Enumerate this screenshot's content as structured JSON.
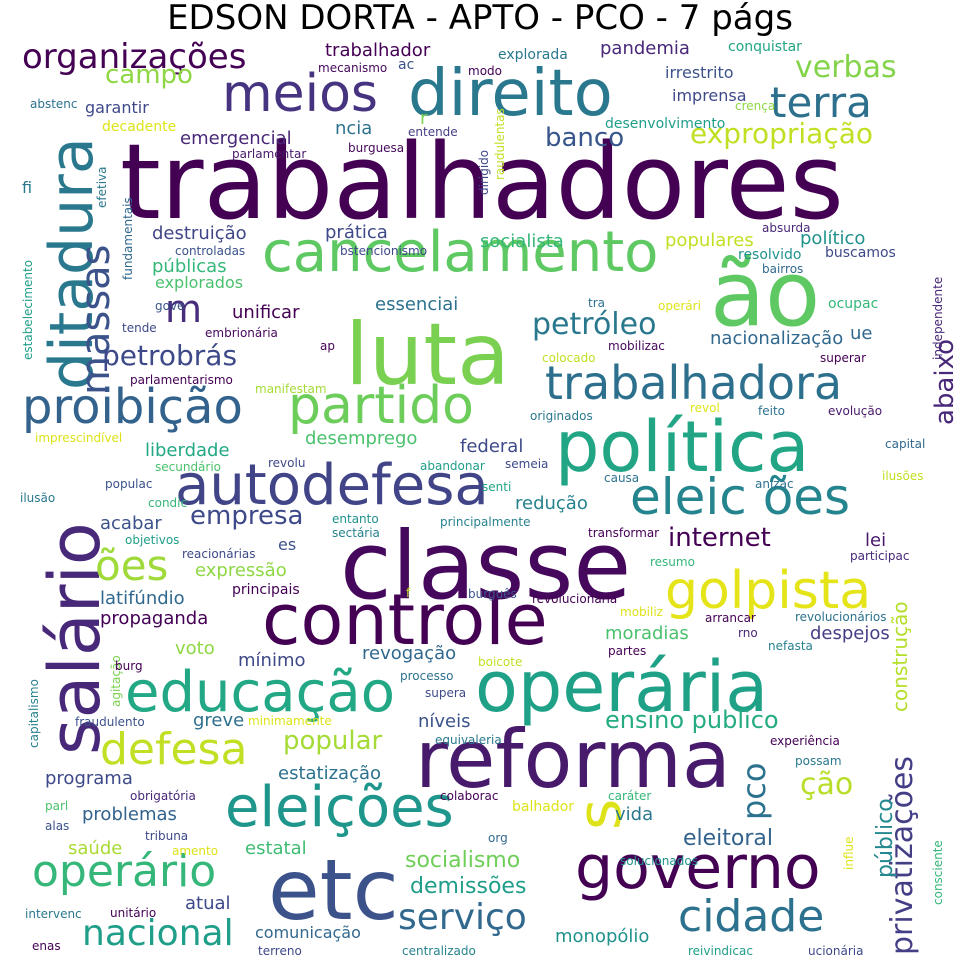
{
  "title": "EDSON DORTA - APTO - PCO - 7 págs",
  "palette": [
    "#440154",
    "#482878",
    "#3e4989",
    "#31688e",
    "#26828e",
    "#1f9e89",
    "#35b779",
    "#6ece58",
    "#b5de2b",
    "#fde725"
  ],
  "words": [
    {
      "text": "trabalhadores",
      "color": "#440154"
    },
    {
      "text": "classe",
      "color": "#46085c"
    },
    {
      "text": "controle",
      "color": "#440154"
    },
    {
      "text": "operária",
      "color": "#1fa187"
    },
    {
      "text": "reforma",
      "color": "#481a6c"
    },
    {
      "text": "luta",
      "color": "#7ad151"
    },
    {
      "text": "política",
      "color": "#21a585"
    },
    {
      "text": "salário",
      "color": "#482878"
    },
    {
      "text": "ditadura",
      "color": "#2a788e"
    },
    {
      "text": "ão",
      "color": "#5ec962"
    },
    {
      "text": "direito",
      "color": "#2a788e"
    },
    {
      "text": "governo",
      "color": "#440154"
    },
    {
      "text": "etc",
      "color": "#3b528b"
    },
    {
      "text": "eleições",
      "color": "#1f968b"
    },
    {
      "text": "cancelamento",
      "color": "#5ec962"
    },
    {
      "text": "autodefesa",
      "color": "#414487"
    },
    {
      "text": "educação",
      "color": "#22a884"
    },
    {
      "text": "golpista",
      "color": "#e5e419"
    },
    {
      "text": "partido",
      "color": "#6ccd5a"
    },
    {
      "text": "proibição",
      "color": "#33638d"
    },
    {
      "text": "s",
      "color": "#dde318"
    },
    {
      "text": "defesa",
      "color": "#c2df23"
    },
    {
      "text": "meios",
      "color": "#463480"
    },
    {
      "text": "trabalhadora",
      "color": "#2d708e"
    },
    {
      "text": "eleic ões",
      "color": "#25858e"
    },
    {
      "text": "operário",
      "color": "#35b779"
    },
    {
      "text": "cidade",
      "color": "#2c728e"
    },
    {
      "text": "massas",
      "color": "#3b528b"
    },
    {
      "text": "privatizações",
      "color": "#433e85"
    },
    {
      "text": "terra",
      "color": "#2d708e"
    },
    {
      "text": "ões",
      "color": "#9fda3a"
    },
    {
      "text": "m",
      "color": "#472d7b"
    },
    {
      "text": "serviço",
      "color": "#31688e"
    },
    {
      "text": "nacional",
      "color": "#1f9e89"
    },
    {
      "text": "pco",
      "color": "#2c728e"
    },
    {
      "text": "organizações",
      "color": "#440154"
    },
    {
      "text": "petrobrás",
      "color": "#3e4989"
    },
    {
      "text": "petróleo",
      "color": "#2a788e"
    },
    {
      "text": "ção",
      "color": "#b8de29"
    },
    {
      "text": "expropriação",
      "color": "#c2df23"
    },
    {
      "text": "verbas",
      "color": "#84d44b"
    },
    {
      "text": "internet",
      "color": "#440154"
    },
    {
      "text": "empresa",
      "color": "#3e4989"
    },
    {
      "text": "abaixo",
      "color": "#482878"
    },
    {
      "text": "popular",
      "color": "#a5db36"
    },
    {
      "text": "ensino público",
      "color": "#25ab82"
    },
    {
      "text": "campo",
      "color": "#8fd744"
    },
    {
      "text": "banco",
      "color": "#39568c"
    },
    {
      "text": "socialismo",
      "color": "#6ece58"
    },
    {
      "text": "demissões",
      "color": "#1f9e89"
    },
    {
      "text": "eleitoral",
      "color": "#33638d"
    },
    {
      "text": "público",
      "color": "#23898e"
    },
    {
      "text": "construção",
      "color": "#b5de2b"
    },
    {
      "text": "monopólio",
      "color": "#20928c"
    },
    {
      "text": "comunicação",
      "color": "#31688e"
    },
    {
      "text": "atual",
      "color": "#3e4989"
    },
    {
      "text": "saúde",
      "color": "#a8db34"
    },
    {
      "text": "estatal",
      "color": "#3fbc73"
    },
    {
      "text": "problemas",
      "color": "#33638d"
    },
    {
      "text": "programa",
      "color": "#3e4989"
    },
    {
      "text": "vida",
      "color": "#2a788e"
    },
    {
      "text": "estatização",
      "color": "#2c728e"
    },
    {
      "text": "níveis",
      "color": "#3b528b"
    },
    {
      "text": "greve",
      "color": "#2d708e"
    },
    {
      "text": "revogação",
      "color": "#31688e"
    },
    {
      "text": "mínimo",
      "color": "#3e4989"
    },
    {
      "text": "voto",
      "color": "#8fd744"
    },
    {
      "text": "propaganda",
      "color": "#440154"
    },
    {
      "text": "latifúndio",
      "color": "#31688e"
    },
    {
      "text": "expressão",
      "color": "#8fd744"
    },
    {
      "text": "acabar",
      "color": "#3b528b"
    },
    {
      "text": "redução",
      "color": "#26828e"
    },
    {
      "text": "federal",
      "color": "#3e4989"
    },
    {
      "text": "desemprego",
      "color": "#4ac16d"
    },
    {
      "text": "liberdade",
      "color": "#22a884"
    },
    {
      "text": "essenciai",
      "color": "#2c728e"
    },
    {
      "text": "unificar",
      "color": "#440154"
    },
    {
      "text": "prática",
      "color": "#3e4989"
    },
    {
      "text": "destruição",
      "color": "#404688"
    },
    {
      "text": "públicas",
      "color": "#35b779"
    },
    {
      "text": "explorados",
      "color": "#4ac16d"
    },
    {
      "text": "socialista",
      "color": "#35b779"
    },
    {
      "text": "populares",
      "color": "#c2df23"
    },
    {
      "text": "político",
      "color": "#20928c"
    },
    {
      "text": "nacionalização",
      "color": "#31688e"
    },
    {
      "text": "emergencial",
      "color": "#482878"
    },
    {
      "text": "garantir",
      "color": "#3e4989"
    },
    {
      "text": "ncia",
      "color": "#2c728e"
    },
    {
      "text": "r",
      "color": "#7ad151"
    },
    {
      "text": "trabalhador",
      "color": "#440154"
    },
    {
      "text": "pandemia",
      "color": "#482878"
    },
    {
      "text": "irrestrito",
      "color": "#3b528b"
    },
    {
      "text": "imprensa",
      "color": "#3e4989"
    },
    {
      "text": "lei",
      "color": "#481a6c"
    },
    {
      "text": "es",
      "color": "#3b528b"
    },
    {
      "text": "moradias",
      "color": "#4ac16d"
    },
    {
      "text": "despejos",
      "color": "#433e85"
    },
    {
      "text": "ue",
      "color": "#31688e"
    },
    {
      "text": "fi",
      "color": "#2a788e"
    },
    {
      "text": "conquistar",
      "color": "#21a585"
    },
    {
      "text": "explorada",
      "color": "#2a788e"
    },
    {
      "text": "mecanismo",
      "color": "#46085c"
    },
    {
      "text": "ac",
      "color": "#3b528b"
    },
    {
      "text": "modo",
      "color": "#440154"
    },
    {
      "text": "abstenc",
      "color": "#2c728e"
    },
    {
      "text": "decadente",
      "color": "#dde318"
    },
    {
      "text": "crença",
      "color": "#8fd744"
    },
    {
      "text": "desenvolvimento",
      "color": "#1f9e89"
    },
    {
      "text": "entende",
      "color": "#433e85"
    },
    {
      "text": "parlamentar",
      "color": "#481a6c"
    },
    {
      "text": "burguesa",
      "color": "#46085c"
    },
    {
      "text": "dirigido",
      "color": "#3e4989"
    },
    {
      "text": "raudulentas",
      "color": "#c2df23"
    },
    {
      "text": "efetiva",
      "color": "#2a788e"
    },
    {
      "text": "fundamentais",
      "color": "#31688e"
    },
    {
      "text": "controladas",
      "color": "#3b528b"
    },
    {
      "text": "bstencionismo",
      "color": "#3e4989"
    },
    {
      "text": "absurda",
      "color": "#482878"
    },
    {
      "text": "buscamos",
      "color": "#3e4989"
    },
    {
      "text": "resolvido",
      "color": "#20928c"
    },
    {
      "text": "bairros",
      "color": "#31688e"
    },
    {
      "text": "estabelecimento",
      "color": "#1f9e89"
    },
    {
      "text": "gove",
      "color": "#3b528b"
    },
    {
      "text": "tende",
      "color": "#3e4989"
    },
    {
      "text": "embrionária",
      "color": "#46085c"
    },
    {
      "text": "tra",
      "color": "#2c728e"
    },
    {
      "text": "operári",
      "color": "#dde318"
    },
    {
      "text": "ocupac",
      "color": "#35b779"
    },
    {
      "text": "independente",
      "color": "#482878"
    },
    {
      "text": "ap",
      "color": "#440154"
    },
    {
      "text": "mobilizac",
      "color": "#46085c"
    },
    {
      "text": "colocado",
      "color": "#c2df23"
    },
    {
      "text": "superar",
      "color": "#440154"
    },
    {
      "text": "parlamentarismo",
      "color": "#440154"
    },
    {
      "text": "manifestam",
      "color": "#a5db36"
    },
    {
      "text": "revol",
      "color": "#dde318"
    },
    {
      "text": "feito",
      "color": "#2c728e"
    },
    {
      "text": "evolução",
      "color": "#481a6c"
    },
    {
      "text": "originados",
      "color": "#2a788e"
    },
    {
      "text": "imprescindível",
      "color": "#dde318"
    },
    {
      "text": "capital",
      "color": "#31688e"
    },
    {
      "text": "secundário",
      "color": "#4ac16d"
    },
    {
      "text": "revolu",
      "color": "#3e4989"
    },
    {
      "text": "abandonar",
      "color": "#1f9e89"
    },
    {
      "text": "semeia",
      "color": "#3e4989"
    },
    {
      "text": "causa",
      "color": "#2c728e"
    },
    {
      "text": "ilusões",
      "color": "#c2df23"
    },
    {
      "text": "anizac",
      "color": "#2c728e"
    },
    {
      "text": "populac",
      "color": "#3b528b"
    },
    {
      "text": "ilusão",
      "color": "#2a788e"
    },
    {
      "text": "condic",
      "color": "#35b779"
    },
    {
      "text": "senti",
      "color": "#21a585"
    },
    {
      "text": "entanto",
      "color": "#20928c"
    },
    {
      "text": "sectária",
      "color": "#26828e"
    },
    {
      "text": "principalmente",
      "color": "#26828e"
    },
    {
      "text": "objetivos",
      "color": "#1f9e89"
    },
    {
      "text": "transformar",
      "color": "#440154"
    },
    {
      "text": "reacionárias",
      "color": "#3e4989"
    },
    {
      "text": "participac",
      "color": "#482878"
    },
    {
      "text": "resumo",
      "color": "#35b779"
    },
    {
      "text": "principais",
      "color": "#440154"
    },
    {
      "text": "f",
      "color": "#c2df23"
    },
    {
      "text": "burguês",
      "color": "#3b528b"
    },
    {
      "text": "revolucionária",
      "color": "#440154"
    },
    {
      "text": "mobiliz",
      "color": "#dde318"
    },
    {
      "text": "arrancar",
      "color": "#440154"
    },
    {
      "text": "revolucionários",
      "color": "#2c728e"
    },
    {
      "text": "rno",
      "color": "#482878"
    },
    {
      "text": "nefasta",
      "color": "#26828e"
    },
    {
      "text": "agitação",
      "color": "#7ad151"
    },
    {
      "text": "burg",
      "color": "#440154"
    },
    {
      "text": "boicote",
      "color": "#c2df23"
    },
    {
      "text": "partes",
      "color": "#440154"
    },
    {
      "text": "processo",
      "color": "#2c728e"
    },
    {
      "text": "supera",
      "color": "#3e4989"
    },
    {
      "text": "capitalismo",
      "color": "#26828e"
    },
    {
      "text": "fraudulento",
      "color": "#3b528b"
    },
    {
      "text": "minimamente",
      "color": "#dde318"
    },
    {
      "text": "equivaleria",
      "color": "#2a788e"
    },
    {
      "text": "experiência",
      "color": "#440154"
    },
    {
      "text": "possam",
      "color": "#2a788e"
    },
    {
      "text": "obrigatória",
      "color": "#482878"
    },
    {
      "text": "colaborac",
      "color": "#440154"
    },
    {
      "text": "caráter",
      "color": "#35b779"
    },
    {
      "text": "balhador",
      "color": "#dde318"
    },
    {
      "text": "parl",
      "color": "#4ac16d"
    },
    {
      "text": "alas",
      "color": "#3b528b"
    },
    {
      "text": "tribuna",
      "color": "#3e4989"
    },
    {
      "text": "amento",
      "color": "#dde318"
    },
    {
      "text": "org",
      "color": "#31688e"
    },
    {
      "text": "solucionados",
      "color": "#20928c"
    },
    {
      "text": "influe",
      "color": "#dde318"
    },
    {
      "text": "consciente",
      "color": "#35b779"
    },
    {
      "text": "intervenc",
      "color": "#2a788e"
    },
    {
      "text": "unitário",
      "color": "#440154"
    },
    {
      "text": "enas",
      "color": "#440154"
    },
    {
      "text": "terreno",
      "color": "#3e4989"
    },
    {
      "text": "centralizado",
      "color": "#26828e"
    },
    {
      "text": "reivindicac",
      "color": "#1f9e89"
    },
    {
      "text": "ucionária",
      "color": "#3e4989"
    }
  ]
}
